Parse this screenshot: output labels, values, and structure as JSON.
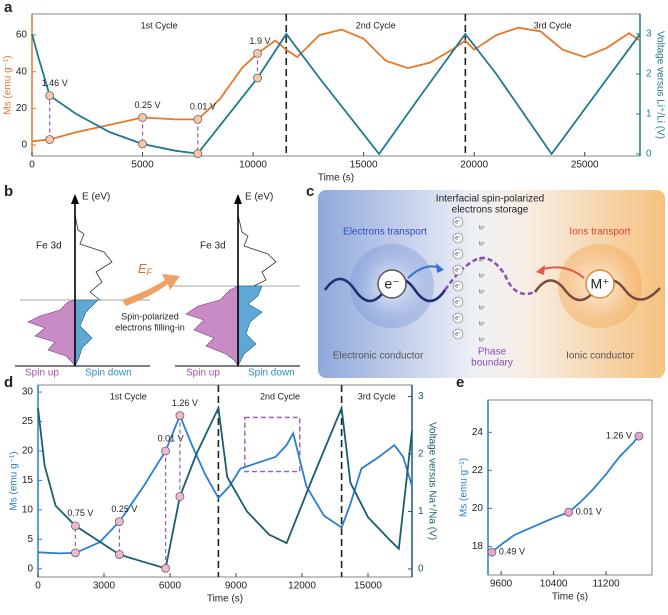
{
  "panel_labels": [
    "a",
    "b",
    "c",
    "d",
    "e"
  ],
  "chart_data": [
    {
      "type": "line",
      "x_label": "Time (s)",
      "y_label": "Ms (emu g⁻¹)",
      "y2_label": "Voltage versus Li⁺/Li (V)",
      "xlim": [
        0,
        27500
      ],
      "xticks": [
        0,
        5000,
        10000,
        15000,
        20000,
        25000
      ],
      "ylim": [
        -6,
        71.5
      ],
      "yticks": [
        0,
        20,
        40,
        60
      ],
      "y2lim": [
        -0.05,
        3.5
      ],
      "y2ticks": [
        0,
        1,
        2,
        3
      ],
      "series": [
        {
          "color": "#e8772e",
          "x": [
            0,
            800,
            2000,
            3500,
            5000,
            6500,
            7500,
            8500,
            9500,
            10200,
            11000,
            11500,
            12000,
            13000,
            14000,
            15000,
            16000,
            17000,
            18000,
            19000,
            19600,
            20000,
            21000,
            22000,
            23000,
            24000,
            25000,
            26000,
            27000,
            27500
          ],
          "values": [
            2,
            3,
            7,
            11,
            15,
            14,
            14,
            25,
            42,
            50,
            57,
            52,
            48,
            60,
            63,
            58,
            46,
            42,
            45,
            52,
            57,
            52,
            60,
            64,
            62,
            52,
            48,
            53,
            61,
            57
          ]
        },
        {
          "axis": "y2",
          "color": "#1f7a8c",
          "x": [
            0,
            300,
            800,
            2000,
            3500,
            5000,
            6500,
            7500,
            10200,
            11500,
            13000,
            15700,
            17500,
            19600,
            21000,
            23500,
            25500,
            27500
          ],
          "values": [
            3.0,
            2.4,
            1.46,
            1.0,
            0.55,
            0.25,
            0.08,
            0.01,
            1.9,
            3.0,
            1.9,
            0.0,
            1.4,
            3.0,
            2.0,
            0.0,
            1.5,
            3.0
          ]
        }
      ],
      "cycle_boundaries": [
        11500,
        19600
      ],
      "cycle_labels": [
        "1st Cycle",
        "2nd Cycle",
        "3rd Cycle"
      ],
      "annotation_color": "#f6c9a4",
      "annotations": [
        {
          "x": 800,
          "y": 3,
          "y2": 1.46,
          "label": "1.46 V"
        },
        {
          "x": 5000,
          "y": 15,
          "y2": 0.25,
          "label": "0.25 V"
        },
        {
          "x": 7500,
          "y": 14,
          "y2": 0.01,
          "label": "0.01 V"
        },
        {
          "x": 10200,
          "y": 50,
          "y2": 1.9,
          "label": "1.9 V"
        }
      ]
    },
    {
      "type": "line",
      "x_label": "Time (s)",
      "y_label": "Ms (emu g⁻¹)",
      "y2_label": "Voltage versus Na⁺/Na (V)",
      "xlim": [
        0,
        17000
      ],
      "xticks": [
        0,
        3000,
        6000,
        9000,
        12000,
        15000
      ],
      "ylim": [
        -1.4,
        31.2
      ],
      "yticks": [
        0,
        5,
        10,
        15,
        20,
        25,
        30
      ],
      "y2lim": [
        -0.14,
        3.2
      ],
      "y2ticks": [
        0,
        1,
        2,
        3
      ],
      "series": [
        {
          "color": "#2a7fd4",
          "x": [
            0,
            1000,
            1700,
            2800,
            3700,
            4800,
            5800,
            6450,
            7000,
            7600,
            8200,
            8700,
            9200,
            10000,
            10800,
            11300,
            11600,
            12200,
            13000,
            13800,
            14200,
            14700,
            15500,
            16200,
            16600,
            17000
          ],
          "values": [
            2.8,
            2.6,
            2.7,
            4.5,
            8,
            14,
            20,
            26,
            21,
            16,
            12,
            14,
            17,
            18,
            19,
            21,
            23,
            14,
            9,
            7,
            11,
            17,
            19,
            21,
            19,
            14
          ]
        },
        {
          "axis": "y2",
          "color": "#1b5e6e",
          "x": [
            0,
            300,
            800,
            1700,
            3700,
            5000,
            5800,
            6450,
            7200,
            8200,
            8600,
            9500,
            10500,
            11300,
            12500,
            13800,
            14200,
            15000,
            16000,
            16400,
            17000
          ],
          "values": [
            2.8,
            1.8,
            1.1,
            0.75,
            0.25,
            0.1,
            0.01,
            1.26,
            2.0,
            2.8,
            1.6,
            1.0,
            0.6,
            0.45,
            1.6,
            2.8,
            1.5,
            0.9,
            0.5,
            0.35,
            2.4
          ]
        }
      ],
      "cycle_boundaries": [
        8200,
        13800
      ],
      "cycle_labels": [
        "1st Cycle",
        "2nd Cycle",
        "3rd Cycle"
      ],
      "annotation_color": "#f2b6d0",
      "annotations": [
        {
          "x": 1700,
          "y": 2.7,
          "y2": 0.75,
          "label": "0.75 V"
        },
        {
          "x": 3700,
          "y": 8,
          "y2": 0.25,
          "label": "0.25 V"
        },
        {
          "x": 5800,
          "y": 20,
          "y2": 0.01,
          "label": "0.01 V"
        },
        {
          "x": 6450,
          "y": 26,
          "y2": 1.26,
          "label": "1.26 V"
        }
      ]
    },
    {
      "type": "line",
      "x_label": "Time (s)",
      "y_label": "Ms (emu g⁻¹)",
      "xlim": [
        9400,
        11900
      ],
      "xticks": [
        9600,
        10400,
        11200
      ],
      "ylim": [
        16.5,
        25.7
      ],
      "yticks": [
        18,
        20,
        22,
        24
      ],
      "series": [
        {
          "color": "#2a7fd4",
          "x": [
            9460,
            9600,
            9800,
            10000,
            10200,
            10400,
            10630,
            10800,
            11000,
            11200,
            11400,
            11600,
            11700
          ],
          "values": [
            17.7,
            18.1,
            18.6,
            18.9,
            19.2,
            19.5,
            19.8,
            20.3,
            21.0,
            21.8,
            22.7,
            23.4,
            23.8
          ]
        }
      ],
      "annotation_color": "#e7a5d6",
      "annotations": [
        {
          "x": 9460,
          "y": 17.7,
          "label": "0.49 V"
        },
        {
          "x": 10630,
          "y": 19.8,
          "label": "0.01 V"
        },
        {
          "x": 11700,
          "y": 23.8,
          "label": "1.26 V"
        }
      ]
    }
  ],
  "panel_b": {
    "energy_axis": "E (eV)",
    "orbital": "Fe 3d",
    "fermi_level": [
      "E",
      "F"
    ],
    "caption": [
      "Spin-polarized",
      "electrons filling-in"
    ],
    "spin_up": "Spin up",
    "spin_down": "Spin down"
  },
  "panel_c": {
    "title": [
      "Interfacial spin-polarized",
      "electrons storage"
    ],
    "electrons_transport": "Electrons transport",
    "ions_transport": "Ions transport",
    "electron": "e⁻",
    "ion": "M⁺",
    "electronic_conductor": "Electronic conductor",
    "phase_boundary": [
      "Phase",
      "boundary"
    ],
    "ionic_conductor": "Ionic conductor"
  }
}
